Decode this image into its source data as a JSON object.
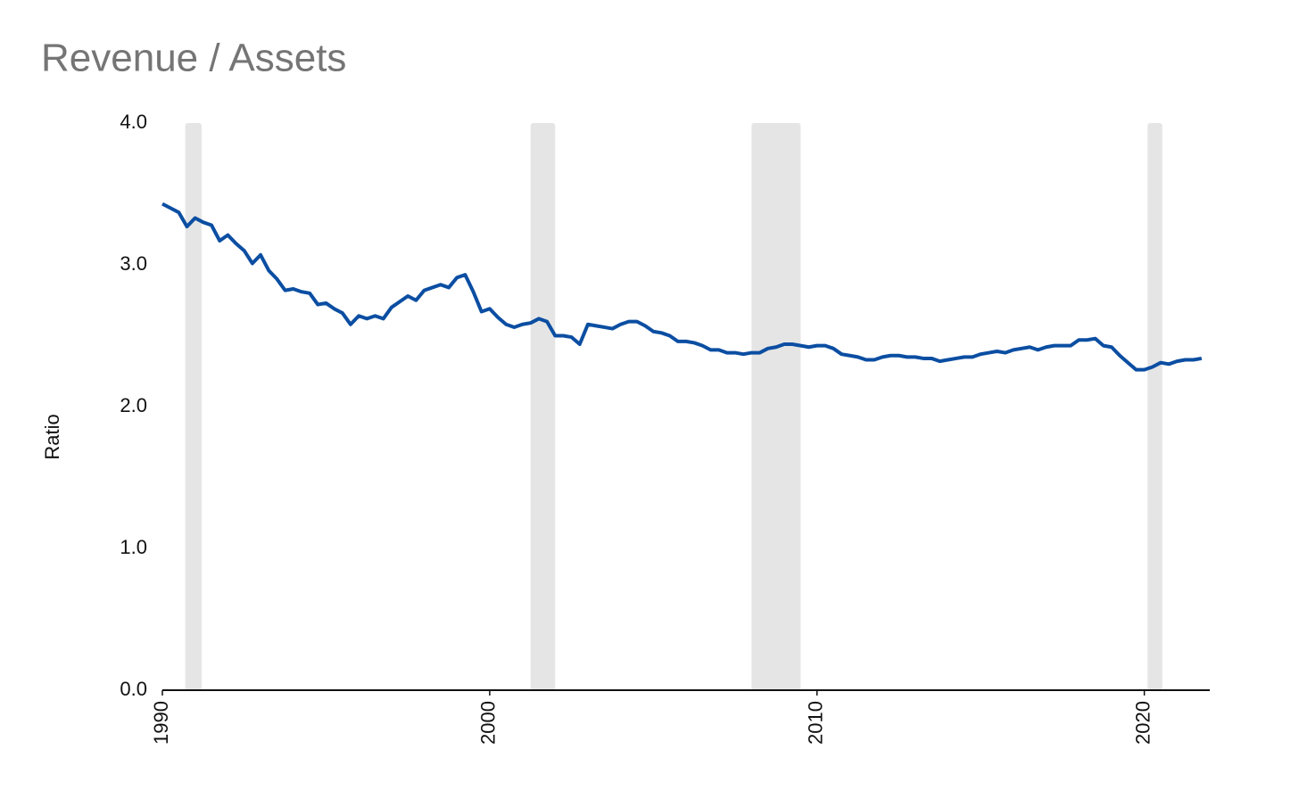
{
  "chart_data": {
    "type": "line",
    "title": "Revenue / Assets",
    "ylabel": "Ratio",
    "xlim": [
      1990,
      2022
    ],
    "xticks": [
      1990,
      2000,
      2010,
      2020
    ],
    "ylim": [
      0,
      4
    ],
    "yticks": [
      {
        "value": 0,
        "label": "0.0"
      },
      {
        "value": 1,
        "label": "1.0"
      },
      {
        "value": 2,
        "label": "2.0"
      },
      {
        "value": 3,
        "label": "3.0"
      },
      {
        "value": 4,
        "label": "4.0"
      }
    ],
    "shaded_ranges": [
      [
        1990.7,
        1991.2
      ],
      [
        2001.25,
        2002.0
      ],
      [
        2008.0,
        2009.5
      ],
      [
        2020.1,
        2020.55
      ]
    ],
    "shade_color": "#e5e5e5",
    "x": [
      1990,
      1990.25,
      1990.5,
      1990.75,
      1991,
      1991.25,
      1991.5,
      1991.75,
      1992,
      1992.25,
      1992.5,
      1992.75,
      1993,
      1993.25,
      1993.5,
      1993.75,
      1994,
      1994.25,
      1994.5,
      1994.75,
      1995,
      1995.25,
      1995.5,
      1995.75,
      1996,
      1996.25,
      1996.5,
      1996.75,
      1997,
      1997.25,
      1997.5,
      1997.75,
      1998,
      1998.25,
      1998.5,
      1998.75,
      1999,
      1999.25,
      1999.5,
      1999.75,
      2000,
      2000.25,
      2000.5,
      2000.75,
      2001,
      2001.25,
      2001.5,
      2001.75,
      2002,
      2002.25,
      2002.5,
      2002.75,
      2003,
      2003.25,
      2003.5,
      2003.75,
      2004,
      2004.25,
      2004.5,
      2004.75,
      2005,
      2005.25,
      2005.5,
      2005.75,
      2006,
      2006.25,
      2006.5,
      2006.75,
      2007,
      2007.25,
      2007.5,
      2007.75,
      2008,
      2008.25,
      2008.5,
      2008.75,
      2009,
      2009.25,
      2009.5,
      2009.75,
      2010,
      2010.25,
      2010.5,
      2010.75,
      2011,
      2011.25,
      2011.5,
      2011.75,
      2012,
      2012.25,
      2012.5,
      2012.75,
      2013,
      2013.25,
      2013.5,
      2013.75,
      2014,
      2014.25,
      2014.5,
      2014.75,
      2015,
      2015.25,
      2015.5,
      2015.75,
      2016,
      2016.25,
      2016.5,
      2016.75,
      2017,
      2017.25,
      2017.5,
      2017.75,
      2018,
      2018.25,
      2018.5,
      2018.75,
      2019,
      2019.25,
      2019.5,
      2019.75,
      2020,
      2020.25,
      2020.5,
      2020.75,
      2021,
      2021.25,
      2021.5,
      2021.75
    ],
    "series": [
      {
        "name": "Revenue / Assets",
        "color": "#0b4ea2",
        "values": [
          3.43,
          3.4,
          3.37,
          3.27,
          3.33,
          3.3,
          3.28,
          3.17,
          3.21,
          3.15,
          3.1,
          3.01,
          3.07,
          2.96,
          2.9,
          2.82,
          2.83,
          2.81,
          2.8,
          2.72,
          2.73,
          2.69,
          2.66,
          2.58,
          2.64,
          2.62,
          2.64,
          2.62,
          2.7,
          2.74,
          2.78,
          2.75,
          2.82,
          2.84,
          2.86,
          2.84,
          2.91,
          2.93,
          2.81,
          2.67,
          2.69,
          2.63,
          2.58,
          2.56,
          2.58,
          2.59,
          2.62,
          2.6,
          2.5,
          2.5,
          2.49,
          2.44,
          2.58,
          2.57,
          2.56,
          2.55,
          2.58,
          2.6,
          2.6,
          2.57,
          2.53,
          2.52,
          2.5,
          2.46,
          2.46,
          2.45,
          2.43,
          2.4,
          2.4,
          2.38,
          2.38,
          2.37,
          2.38,
          2.38,
          2.41,
          2.42,
          2.44,
          2.44,
          2.43,
          2.42,
          2.43,
          2.43,
          2.41,
          2.37,
          2.36,
          2.35,
          2.33,
          2.33,
          2.35,
          2.36,
          2.36,
          2.35,
          2.35,
          2.34,
          2.34,
          2.32,
          2.33,
          2.34,
          2.35,
          2.35,
          2.37,
          2.38,
          2.39,
          2.38,
          2.4,
          2.41,
          2.42,
          2.4,
          2.42,
          2.43,
          2.43,
          2.43,
          2.47,
          2.47,
          2.48,
          2.43,
          2.42,
          2.36,
          2.31,
          2.26,
          2.26,
          2.28,
          2.31,
          2.3,
          2.32,
          2.33,
          2.33,
          2.34
        ]
      }
    ]
  }
}
